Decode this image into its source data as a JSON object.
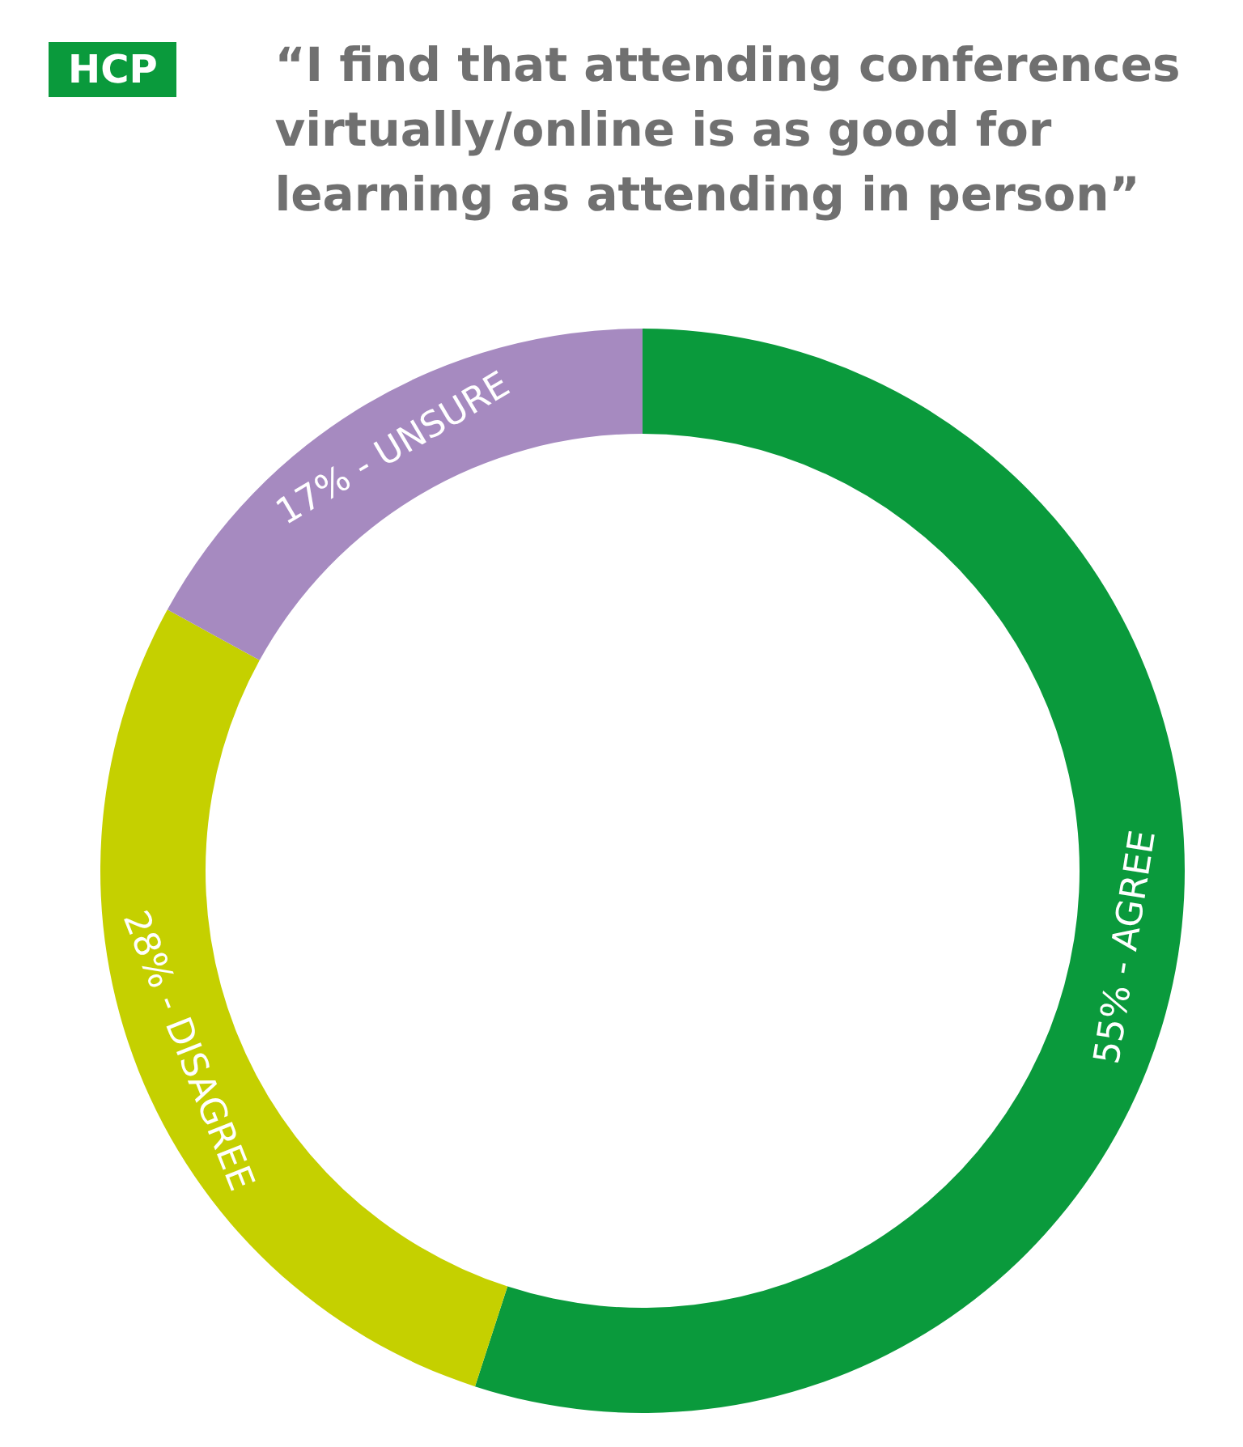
{
  "chart_data": {
    "type": "donut",
    "title": "“I find that attending conferences virtually/online is as good for learning as attending in person”",
    "annotations": [
      "HCP"
    ],
    "categories": [
      "55% - AGREE",
      "28% - DISAGREE",
      "17% - UNSURE"
    ],
    "values": [
      55,
      28,
      17
    ],
    "colors": [
      "#0a9a3c",
      "#c5d000",
      "#a68ac0"
    ],
    "legend": false
  }
}
